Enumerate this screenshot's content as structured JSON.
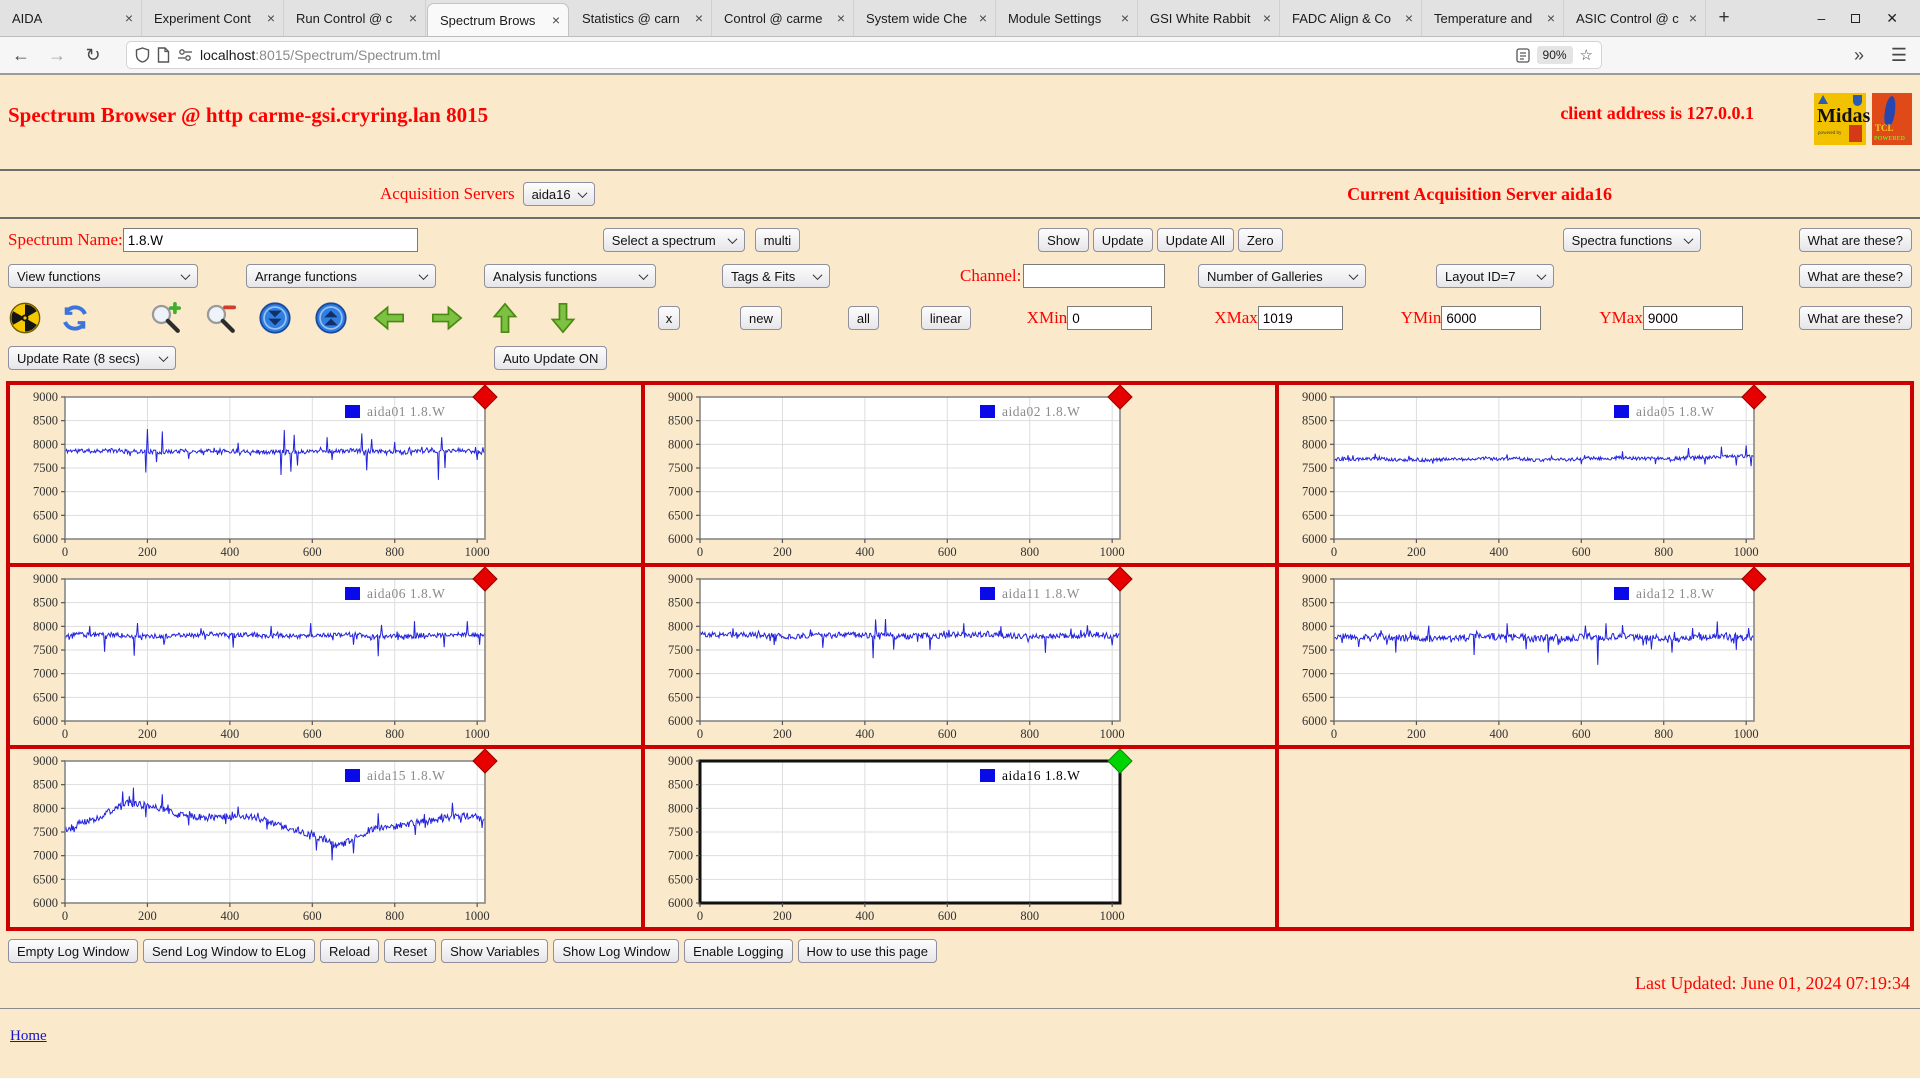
{
  "browser": {
    "tabs": [
      {
        "title": "AIDA",
        "active": false
      },
      {
        "title": "Experiment Cont",
        "active": false
      },
      {
        "title": "Run Control @ c",
        "active": false
      },
      {
        "title": "Spectrum Brows",
        "active": true
      },
      {
        "title": "Statistics @ carn",
        "active": false
      },
      {
        "title": "Control @ carme",
        "active": false
      },
      {
        "title": "System wide Che",
        "active": false
      },
      {
        "title": "Module Settings",
        "active": false
      },
      {
        "title": "GSI White Rabbit",
        "active": false
      },
      {
        "title": "FADC Align & Co",
        "active": false
      },
      {
        "title": "Temperature and",
        "active": false
      },
      {
        "title": "ASIC Control @ c",
        "active": false
      }
    ],
    "new_tab": "+",
    "url_host": "localhost",
    "url_rest": ":8015/Spectrum/Spectrum.tml",
    "zoom_badge": "90%",
    "star": "☆",
    "back": "←",
    "forward": "→",
    "reload": "↻",
    "overflow": "»",
    "menu": "☰",
    "win_min": "–",
    "win_close": "✕"
  },
  "header": {
    "title": "Spectrum Browser @ http carme-gsi.cryring.lan 8015",
    "client": "client address is 127.0.0.1",
    "midas_logo": {
      "big": "Midas",
      "sub": "powered by"
    },
    "tcl_logo": {
      "name": "TCL",
      "sub": "POWERED"
    }
  },
  "server_row": {
    "label": "Acquisition Servers",
    "selected": "aida16",
    "current": "Current Acquisition Server aida16"
  },
  "spectrum_row": {
    "label": "Spectrum Name:",
    "value": "1.8.W",
    "select_spectrum": "Select a spectrum",
    "multi": "multi",
    "show": "Show",
    "update": "Update",
    "update_all": "Update All",
    "zero": "Zero",
    "spectra_functions": "Spectra functions",
    "what": "What are these?"
  },
  "functions_row": {
    "view": "View functions",
    "arrange": "Arrange functions",
    "analysis": "Analysis functions",
    "tags": "Tags & Fits",
    "channel_label": "Channel:",
    "channel_value": "",
    "galleries": "Number of Galleries",
    "layout": "Layout ID=7",
    "what": "What are these?"
  },
  "toolbar_row": {
    "icons": [
      "radiation-icon",
      "refresh-icon",
      "zoom-in-icon",
      "zoom-out-icon",
      "scroll-down-icon",
      "scroll-up-icon",
      "arrow-left-icon",
      "arrow-right-icon",
      "arrow-up-icon",
      "arrow-down-icon"
    ],
    "x_label": "x",
    "new": "new",
    "all": "all",
    "linear": "linear",
    "xmin_label": "XMin",
    "xmin": "0",
    "xmax_label": "XMax",
    "xmax": "1019",
    "ymin_label": "YMin",
    "ymin": "6000",
    "ymax_label": "YMax",
    "ymax": "9000",
    "what": "What are these?"
  },
  "update_row": {
    "rate": "Update Rate (8 secs)",
    "auto": "Auto Update ON"
  },
  "chart_data": {
    "type": "line",
    "xlim": [
      0,
      1019
    ],
    "ylim": [
      6000,
      9000
    ],
    "x_ticks": [
      0,
      200,
      400,
      600,
      800,
      1000
    ],
    "y_ticks": [
      6000,
      6500,
      7000,
      7500,
      8000,
      8500,
      9000
    ],
    "grid": true,
    "line_color": "#2323dd",
    "legend_swatch_color": "#0a0ae8",
    "note": "3x3 gallery of noise spectra; all series hover near 7700-7900 counts; aida02 and aida16 are empty; aida16 is the selected gallery (black frame, green status diamond); last cell unused",
    "plots": [
      {
        "legend": "aida01 1.8.W",
        "empty": false,
        "marker_color": "#e60000",
        "legend_color": "#8a8a8a",
        "seed": 11,
        "noise": 45,
        "wander": 20,
        "trend": [
          [
            0,
            7855
          ],
          [
            1020,
            7850
          ]
        ],
        "spikes": [
          {
            "x": 196,
            "dy": -450
          },
          {
            "x": 200,
            "dy": 470
          },
          {
            "x": 222,
            "dy": -230
          },
          {
            "x": 236,
            "dy": 420
          },
          {
            "x": 300,
            "dy": -160
          },
          {
            "x": 420,
            "dy": 180
          },
          {
            "x": 524,
            "dy": -500
          },
          {
            "x": 532,
            "dy": 450
          },
          {
            "x": 548,
            "dy": -430
          },
          {
            "x": 556,
            "dy": 350
          },
          {
            "x": 564,
            "dy": -300
          },
          {
            "x": 636,
            "dy": 300
          },
          {
            "x": 648,
            "dy": -180
          },
          {
            "x": 720,
            "dy": 380
          },
          {
            "x": 732,
            "dy": -400
          },
          {
            "x": 744,
            "dy": 260
          },
          {
            "x": 800,
            "dy": 200
          },
          {
            "x": 906,
            "dy": -600
          },
          {
            "x": 914,
            "dy": 300
          },
          {
            "x": 922,
            "dy": -350
          },
          {
            "x": 1000,
            "dy": -180
          }
        ]
      },
      {
        "legend": "aida02 1.8.W",
        "empty": true,
        "marker_color": "#e60000",
        "legend_color": "#8a8a8a"
      },
      {
        "legend": "aida05 1.8.W",
        "empty": false,
        "marker_color": "#e60000",
        "legend_color": "#8a8a8a",
        "seed": 52,
        "noise": 35,
        "wander": 20,
        "trend": [
          [
            0,
            7680
          ],
          [
            600,
            7690
          ],
          [
            1020,
            7740
          ]
        ],
        "spikes": [
          {
            "x": 100,
            "dy": 120
          },
          {
            "x": 240,
            "dy": -90
          },
          {
            "x": 420,
            "dy": 100
          },
          {
            "x": 600,
            "dy": -110
          },
          {
            "x": 700,
            "dy": 150
          },
          {
            "x": 780,
            "dy": -130
          },
          {
            "x": 860,
            "dy": 200
          },
          {
            "x": 900,
            "dy": -150
          },
          {
            "x": 940,
            "dy": 220
          },
          {
            "x": 975,
            "dy": -180
          },
          {
            "x": 1000,
            "dy": 240
          },
          {
            "x": 1012,
            "dy": -200
          }
        ]
      },
      {
        "legend": "aida06 1.8.W",
        "empty": false,
        "marker_color": "#e60000",
        "legend_color": "#8a8a8a",
        "seed": 63,
        "noise": 50,
        "wander": 25,
        "trend": [
          [
            0,
            7810
          ],
          [
            1020,
            7810
          ]
        ],
        "spikes": [
          {
            "x": 60,
            "dy": 200
          },
          {
            "x": 96,
            "dy": -350
          },
          {
            "x": 168,
            "dy": -430
          },
          {
            "x": 176,
            "dy": 260
          },
          {
            "x": 240,
            "dy": -200
          },
          {
            "x": 330,
            "dy": 150
          },
          {
            "x": 408,
            "dy": -260
          },
          {
            "x": 500,
            "dy": 200
          },
          {
            "x": 596,
            "dy": 260
          },
          {
            "x": 700,
            "dy": -200
          },
          {
            "x": 760,
            "dy": -440
          },
          {
            "x": 768,
            "dy": 220
          },
          {
            "x": 848,
            "dy": 300
          },
          {
            "x": 920,
            "dy": -250
          },
          {
            "x": 976,
            "dy": 300
          },
          {
            "x": 1005,
            "dy": -200
          }
        ]
      },
      {
        "legend": "aida11 1.8.W",
        "empty": false,
        "marker_color": "#e60000",
        "legend_color": "#8a8a8a",
        "seed": 117,
        "noise": 60,
        "wander": 25,
        "trend": [
          [
            0,
            7810
          ],
          [
            1020,
            7800
          ]
        ],
        "spikes": [
          {
            "x": 80,
            "dy": 150
          },
          {
            "x": 180,
            "dy": -200
          },
          {
            "x": 298,
            "dy": -260
          },
          {
            "x": 420,
            "dy": -480
          },
          {
            "x": 426,
            "dy": 340
          },
          {
            "x": 450,
            "dy": 350
          },
          {
            "x": 470,
            "dy": -300
          },
          {
            "x": 558,
            "dy": -300
          },
          {
            "x": 640,
            "dy": 260
          },
          {
            "x": 730,
            "dy": 200
          },
          {
            "x": 838,
            "dy": -360
          },
          {
            "x": 900,
            "dy": 150
          },
          {
            "x": 940,
            "dy": 220
          },
          {
            "x": 1000,
            "dy": -200
          }
        ]
      },
      {
        "legend": "aida12 1.8.W",
        "empty": false,
        "marker_color": "#e60000",
        "legend_color": "#8a8a8a",
        "seed": 129,
        "noise": 70,
        "wander": 30,
        "trend": [
          [
            0,
            7765
          ],
          [
            1020,
            7765
          ]
        ],
        "spikes": [
          {
            "x": 60,
            "dy": -200
          },
          {
            "x": 150,
            "dy": -320
          },
          {
            "x": 230,
            "dy": 250
          },
          {
            "x": 340,
            "dy": -370
          },
          {
            "x": 420,
            "dy": 300
          },
          {
            "x": 465,
            "dy": -250
          },
          {
            "x": 520,
            "dy": -320
          },
          {
            "x": 610,
            "dy": 250
          },
          {
            "x": 640,
            "dy": -580
          },
          {
            "x": 660,
            "dy": 300
          },
          {
            "x": 700,
            "dy": 260
          },
          {
            "x": 770,
            "dy": -250
          },
          {
            "x": 820,
            "dy": -320
          },
          {
            "x": 870,
            "dy": 200
          },
          {
            "x": 930,
            "dy": 340
          },
          {
            "x": 975,
            "dy": -260
          },
          {
            "x": 1005,
            "dy": 200
          }
        ]
      },
      {
        "legend": "aida15 1.8.W",
        "empty": false,
        "marker_color": "#e60000",
        "legend_color": "#8a8a8a",
        "seed": 155,
        "noise": 75,
        "wander": 0,
        "trend": [
          [
            0,
            7550
          ],
          [
            90,
            7850
          ],
          [
            150,
            8100
          ],
          [
            210,
            8050
          ],
          [
            280,
            7850
          ],
          [
            360,
            7800
          ],
          [
            440,
            7850
          ],
          [
            520,
            7650
          ],
          [
            600,
            7450
          ],
          [
            660,
            7200
          ],
          [
            700,
            7350
          ],
          [
            760,
            7600
          ],
          [
            820,
            7650
          ],
          [
            900,
            7750
          ],
          [
            960,
            7850
          ],
          [
            1020,
            7800
          ]
        ],
        "spikes": [
          {
            "x": 140,
            "dy": 300
          },
          {
            "x": 165,
            "dy": 350
          },
          {
            "x": 195,
            "dy": -250
          },
          {
            "x": 235,
            "dy": 320
          },
          {
            "x": 300,
            "dy": -200
          },
          {
            "x": 420,
            "dy": 200
          },
          {
            "x": 610,
            "dy": -300
          },
          {
            "x": 648,
            "dy": -350
          },
          {
            "x": 700,
            "dy": -300
          },
          {
            "x": 760,
            "dy": 300
          },
          {
            "x": 850,
            "dy": -250
          },
          {
            "x": 940,
            "dy": 300
          },
          {
            "x": 1012,
            "dy": -220
          }
        ]
      },
      {
        "legend": "aida16 1.8.W",
        "empty": true,
        "marker_color": "#00d400",
        "legend_color": "#000000",
        "selected": true
      }
    ]
  },
  "footer": {
    "buttons": [
      "Empty Log Window",
      "Send Log Window to ELog",
      "Reload",
      "Reset",
      "Show Variables",
      "Show Log Window",
      "Enable Logging"
    ],
    "help": "How to use this page",
    "last_updated": "Last Updated: June 01, 2024 07:19:34",
    "home": "Home"
  }
}
